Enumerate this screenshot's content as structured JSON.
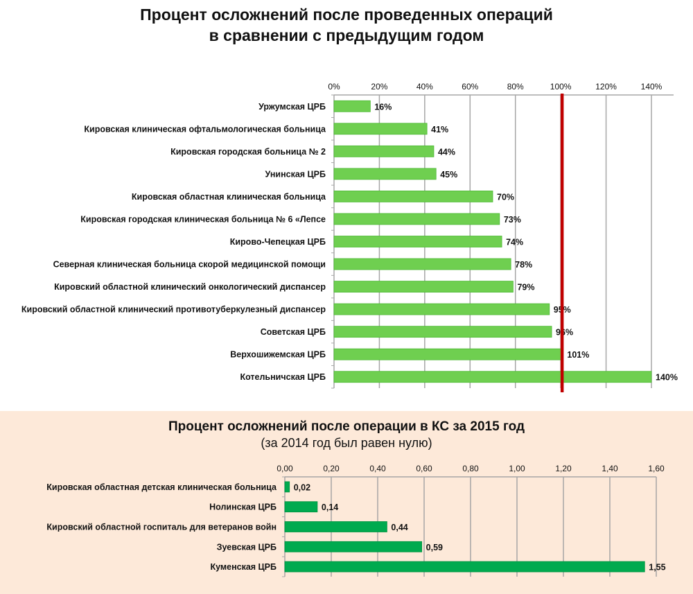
{
  "chart_data": [
    {
      "type": "bar",
      "orientation": "horizontal",
      "title": "Процент осложнений после проведенных операций в сравнении с предыдущим годом",
      "title_lines": [
        "Процент осложнений после проведенных операций",
        "в сравнении с предыдущим годом"
      ],
      "categories": [
        "Уржумская ЦРБ",
        "Кировская клиническая офтальмологическая больница",
        "Кировская городская больница № 2",
        "Унинская ЦРБ",
        "Кировская областная клиническая больница",
        "Кировская городская клиническая больница № 6 «Лепсе",
        "Кирово-Чепецкая ЦРБ",
        "Северная клиническая больница скорой медицинской помощи",
        "Кировский областной клинический онкологический диспансер",
        "Кировский областной клинический противотуберкулезный диспансер",
        "Советская ЦРБ",
        "Верхошижемская ЦРБ",
        "Котельничская ЦРБ"
      ],
      "values": [
        16,
        41,
        44,
        45,
        70,
        73,
        74,
        78,
        79,
        95,
        96,
        101,
        140
      ],
      "data_labels": [
        "16%",
        "41%",
        "44%",
        "45%",
        "70%",
        "73%",
        "74%",
        "78%",
        "79%",
        "95%",
        "96%",
        "101%",
        "140%"
      ],
      "xlim": [
        0,
        140
      ],
      "ticks": [
        "0%",
        "20%",
        "40%",
        "60%",
        "80%",
        "100%",
        "120%",
        "140%"
      ],
      "reference_line": 100,
      "reference_color": "#c00000",
      "bar_color": "#6fcf50",
      "grid": true,
      "axis_position": "top"
    },
    {
      "type": "bar",
      "orientation": "horizontal",
      "title": "Процент осложнений после операции в КС за 2015 год",
      "subtitle": "(за 2014 год был равен нулю)",
      "categories": [
        "Кировская областная детская клиническая больница",
        "Нолинская ЦРБ",
        "Кировский областной госпиталь для ветеранов войн",
        "Зуевская ЦРБ",
        "Куменская ЦРБ"
      ],
      "values": [
        0.02,
        0.14,
        0.44,
        0.59,
        1.55
      ],
      "data_labels": [
        "0,02",
        "0,14",
        "0,44",
        "0,59",
        "1,55"
      ],
      "xlim": [
        0,
        1.6
      ],
      "ticks": [
        "0,00",
        "0,20",
        "0,40",
        "0,60",
        "0,80",
        "1,00",
        "1,20",
        "1,40",
        "1,60"
      ],
      "bar_color": "#00aa4f",
      "background": "#fde9d9",
      "grid": true,
      "axis_position": "top"
    }
  ]
}
